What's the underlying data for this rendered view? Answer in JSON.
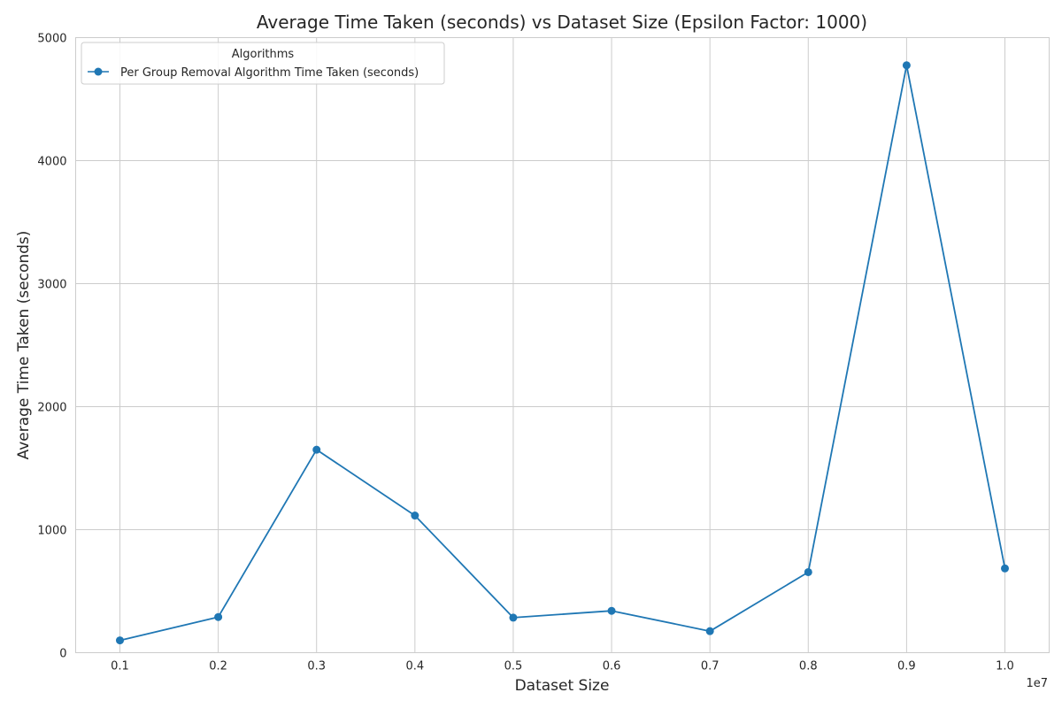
{
  "chart_data": {
    "type": "line",
    "title": "Average Time Taken (seconds) vs Dataset Size (Epsilon Factor: 1000)",
    "xlabel": "Dataset Size",
    "ylabel": "Average Time Taken (seconds)",
    "x_offset_label": "1e7",
    "x_tick_labels": [
      "0.1",
      "0.2",
      "0.3",
      "0.4",
      "0.5",
      "0.6",
      "0.7",
      "0.8",
      "0.9",
      "1.0"
    ],
    "x_ticks": [
      0.1,
      0.2,
      0.3,
      0.4,
      0.5,
      0.6,
      0.7,
      0.8,
      0.9,
      1.0
    ],
    "y_ticks": [
      0,
      1000,
      2000,
      3000,
      4000,
      5000
    ],
    "y_tick_labels": [
      "0",
      "1000",
      "2000",
      "3000",
      "4000",
      "5000"
    ],
    "xlim": [
      0.055,
      1.045
    ],
    "ylim": [
      0,
      5000
    ],
    "grid": true,
    "legend": {
      "title": "Algorithms",
      "placement": "top-left"
    },
    "series": [
      {
        "name": "Per Group Removal Algorithm Time Taken (seconds)",
        "color": "#1f77b4",
        "marker": "circle",
        "x": [
          0.1,
          0.2,
          0.3,
          0.4,
          0.5,
          0.6,
          0.7,
          0.8,
          0.9,
          1.0
        ],
        "values": [
          100,
          290,
          1650,
          1115,
          285,
          340,
          175,
          655,
          4775,
          685
        ]
      }
    ]
  }
}
